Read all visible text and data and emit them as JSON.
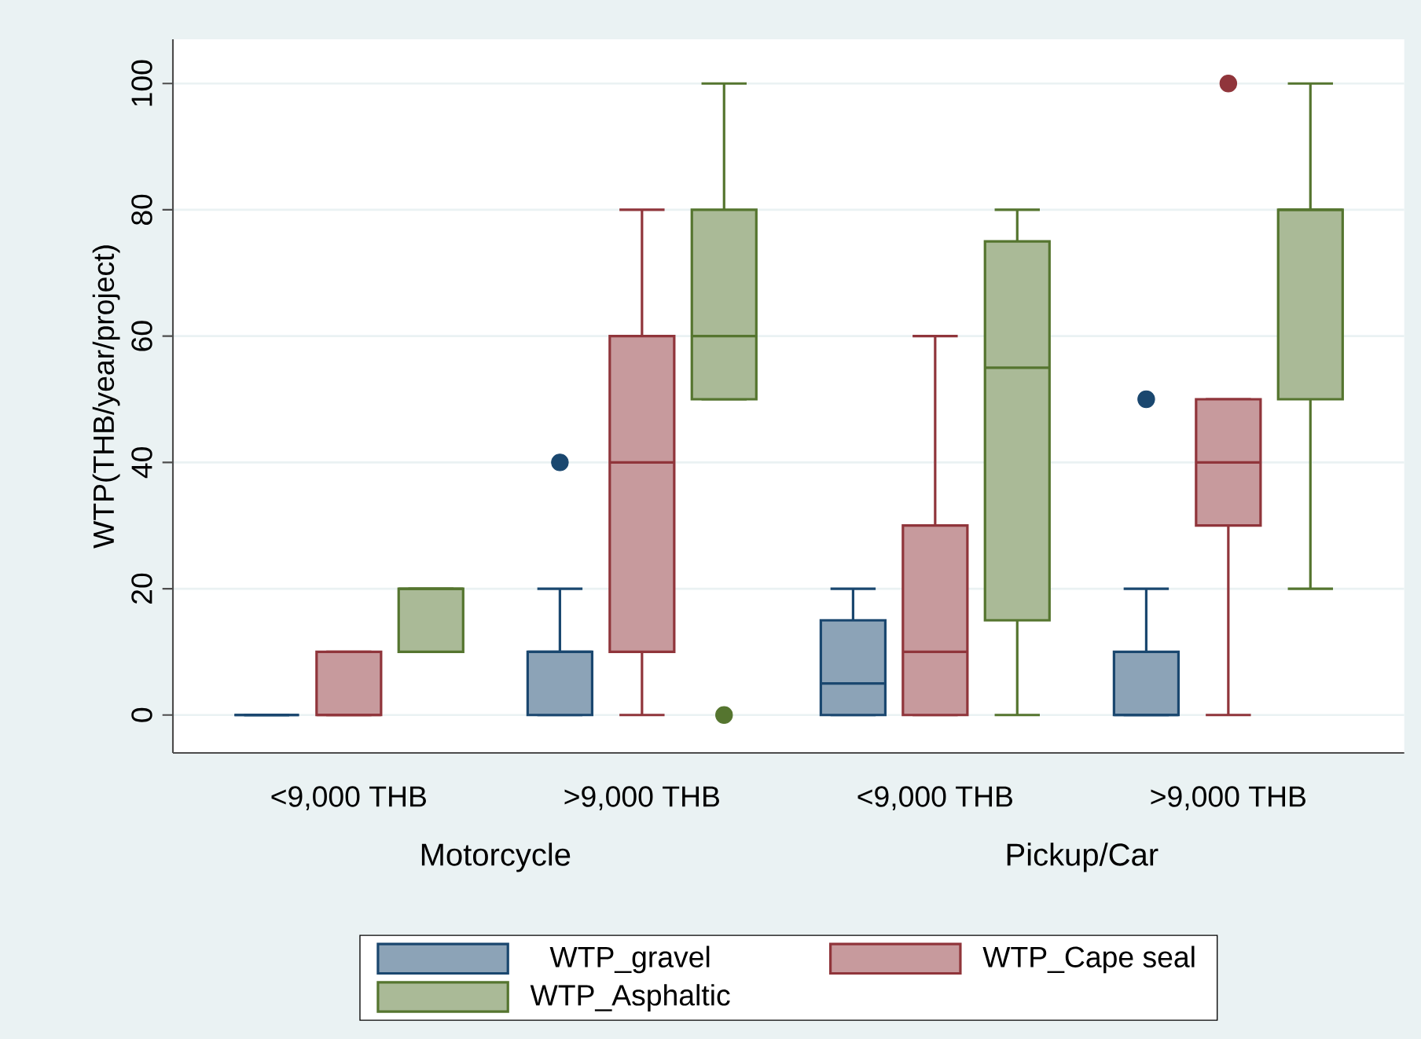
{
  "chart_data": {
    "type": "box",
    "ylabel": "WTP(THB/year/project)",
    "categories": [
      "<9,000 THB",
      ">9,000 THB",
      "<9,000 THB",
      ">9,000 THB"
    ],
    "annotations": [
      "Motorcycle",
      "Pickup/Car"
    ],
    "series": [
      {
        "name": "WTP_gravel",
        "color": "#1a476f",
        "boxes": [
          {
            "low": 0,
            "q1": 0,
            "median": 0,
            "q3": 0,
            "high": 0
          },
          {
            "low": 0,
            "q1": 0,
            "median": 10,
            "q3": 10,
            "high": 20,
            "outliers": [
              40
            ]
          },
          {
            "low": 0,
            "q1": 0,
            "median": 5,
            "q3": 15,
            "high": 20
          },
          {
            "low": 0,
            "q1": 0,
            "median": 0,
            "q3": 10,
            "high": 20,
            "outliers": [
              50
            ]
          }
        ]
      },
      {
        "name": "WTP_Cape seal",
        "color": "#90353b",
        "boxes": [
          {
            "low": 0,
            "q1": 0,
            "median": 0,
            "q3": 10,
            "high": 10
          },
          {
            "low": 0,
            "q1": 10,
            "median": 40,
            "q3": 60,
            "high": 80
          },
          {
            "low": 0,
            "q1": 0,
            "median": 10,
            "q3": 30,
            "high": 60
          },
          {
            "low": 0,
            "q1": 30,
            "median": 40,
            "q3": 50,
            "high": 50,
            "outliers": [
              100
            ]
          }
        ]
      },
      {
        "name": "WTP_Asphaltic",
        "color": "#55752f",
        "boxes": [
          {
            "low": 10,
            "q1": 10,
            "median": 20,
            "q3": 20,
            "high": 20
          },
          {
            "low": 50,
            "q1": 50,
            "median": 60,
            "q3": 80,
            "high": 100,
            "outliers": [
              0
            ]
          },
          {
            "low": 0,
            "q1": 15,
            "median": 55,
            "q3": 75,
            "high": 80
          },
          {
            "low": 20,
            "q1": 50,
            "median": 80,
            "q3": 80,
            "high": 100
          }
        ]
      }
    ],
    "ylim": [
      -6,
      107
    ],
    "yticks": [
      0,
      20,
      40,
      60,
      80,
      100
    ],
    "grid": "y",
    "legend": "bottom"
  }
}
